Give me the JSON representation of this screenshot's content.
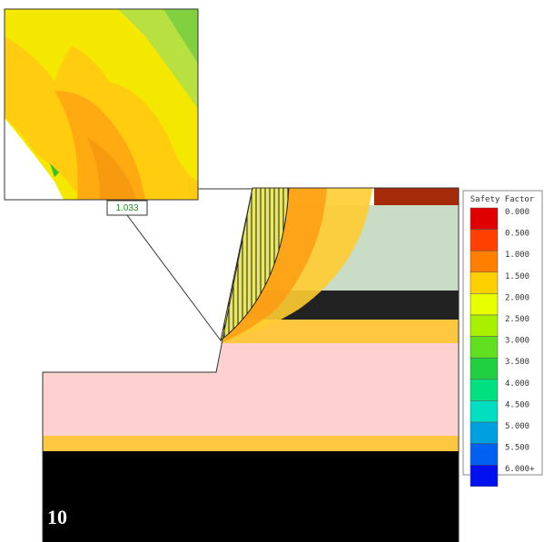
{
  "callout": {
    "label": "1.033"
  },
  "legend": {
    "title": "Safety Factor",
    "items": [
      {
        "label": "0.000",
        "color": "#e00000"
      },
      {
        "label": "0.500",
        "color": "#ff4000"
      },
      {
        "label": "1.000",
        "color": "#ff8000"
      },
      {
        "label": "1.500",
        "color": "#ffd000"
      },
      {
        "label": "2.000",
        "color": "#e8ff00"
      },
      {
        "label": "2.500",
        "color": "#a8f000"
      },
      {
        "label": "3.000",
        "color": "#60e020"
      },
      {
        "label": "3.500",
        "color": "#20d040"
      },
      {
        "label": "4.000",
        "color": "#00e080"
      },
      {
        "label": "4.500",
        "color": "#00e0c0"
      },
      {
        "label": "5.000",
        "color": "#00a0e0"
      },
      {
        "label": "5.500",
        "color": "#0060f0"
      },
      {
        "label": "6.000+",
        "color": "#0010f0"
      }
    ]
  },
  "figure_label": "10"
}
